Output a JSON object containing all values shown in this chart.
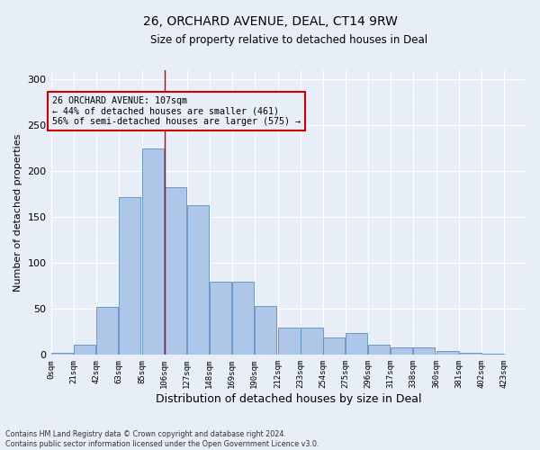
{
  "title1": "26, ORCHARD AVENUE, DEAL, CT14 9RW",
  "title2": "Size of property relative to detached houses in Deal",
  "xlabel": "Distribution of detached houses by size in Deal",
  "ylabel": "Number of detached properties",
  "bar_labels": [
    "0sqm",
    "21sqm",
    "42sqm",
    "63sqm",
    "85sqm",
    "106sqm",
    "127sqm",
    "148sqm",
    "169sqm",
    "190sqm",
    "212sqm",
    "233sqm",
    "254sqm",
    "275sqm",
    "296sqm",
    "317sqm",
    "338sqm",
    "360sqm",
    "381sqm",
    "402sqm",
    "423sqm"
  ],
  "bar_values": [
    2,
    11,
    52,
    172,
    225,
    183,
    163,
    80,
    80,
    53,
    30,
    30,
    19,
    24,
    11,
    8,
    8,
    4,
    2,
    1,
    0
  ],
  "bar_color": "#aec6e8",
  "bar_edge_color": "#5a8fc2",
  "bg_color": "#e8eef7",
  "grid_color": "#ffffff",
  "vline_x": 106,
  "vline_color": "#cc0000",
  "annotation_text": "26 ORCHARD AVENUE: 107sqm\n← 44% of detached houses are smaller (461)\n56% of semi-detached houses are larger (575) →",
  "annotation_box_color": "#cc0000",
  "footer_text": "Contains HM Land Registry data © Crown copyright and database right 2024.\nContains public sector information licensed under the Open Government Licence v3.0.",
  "ylim": [
    0,
    310
  ],
  "bin_width": 21
}
